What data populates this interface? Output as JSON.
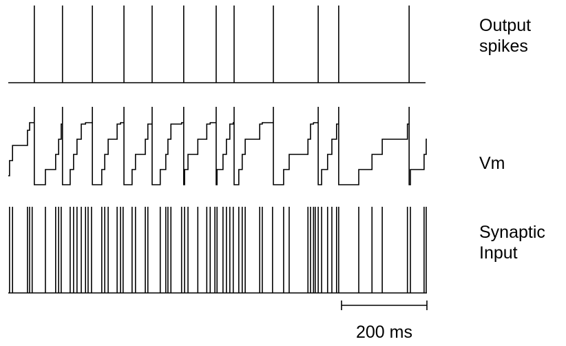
{
  "panels": {
    "output": {
      "label": [
        "Output",
        "spikes"
      ],
      "spike_times_ms": [
        61,
        127,
        197,
        271,
        337,
        411,
        487,
        529,
        621,
        726,
        774,
        939
      ]
    },
    "vm": {
      "label": [
        "Vm"
      ]
    },
    "input": {
      "label": [
        "Synaptic",
        "Input"
      ],
      "event_times_ms": [
        3,
        10,
        45,
        50,
        56,
        87,
        111,
        118,
        124,
        145,
        153,
        161,
        171,
        181,
        187,
        195,
        219,
        226,
        234,
        255,
        263,
        269,
        290,
        298,
        321,
        327,
        356,
        369,
        374,
        381,
        406,
        413,
        421,
        444,
        465,
        473,
        484,
        489,
        503,
        511,
        519,
        527,
        540,
        548,
        555,
        589,
        595,
        619,
        645,
        658,
        702,
        708,
        715,
        719,
        726,
        734,
        748,
        758,
        769,
        774,
        821,
        852,
        876,
        935,
        942,
        974,
        979
      ]
    }
  },
  "scale_bar": {
    "length_ms": 200,
    "label": "200 ms"
  }
}
